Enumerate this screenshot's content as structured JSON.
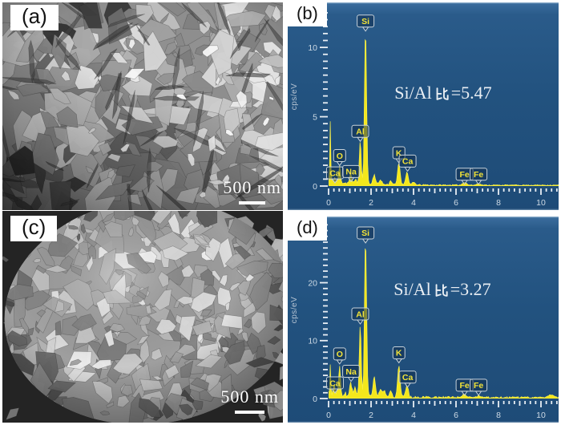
{
  "figure": {
    "caption_labels": [
      "(a)",
      "(b)",
      "(c)",
      "(d)"
    ]
  },
  "panels": {
    "a": {
      "label": "(a)",
      "scale_bar_text": "500 nm"
    },
    "b": {
      "label": "(b)"
    },
    "c": {
      "label": "(c)",
      "scale_bar_text": "500 nm"
    },
    "d": {
      "label": "(d)"
    }
  },
  "colors": {
    "panel_bg": "#21507d",
    "panel_bg_light": "#3c6e9e",
    "spectrum_fill": "#f4e71c",
    "spectrum_stroke": "#f9f04a",
    "tag_text": "#f2e338",
    "tag_border": "#c7d2da",
    "tag_fill": "rgba(13,42,74,0.5)",
    "tick": "#e8eef4",
    "tick_label": "#cddae5",
    "axis_label": "#b6c4d3",
    "annotation": "#e9eef3"
  },
  "chart_data": [
    {
      "id": "b",
      "type": "area",
      "title": "",
      "xlabel": "",
      "ylabel": "cps/eV",
      "xlim": [
        0,
        11
      ],
      "ylim": [
        0,
        12.9
      ],
      "xticks_labeled": [
        0,
        2,
        4,
        6,
        8,
        10
      ],
      "yticks_labeled": [
        0,
        5,
        10
      ],
      "x_minor_step": 0.25,
      "y_minor_step": 0.5,
      "grid": false,
      "legend": "none",
      "annotation": "Si/Al比=5.47",
      "annotation_prefix": "Si/Al",
      "annotation_ratio_char": "比",
      "annotation_suffix": "=5.47",
      "baseline": 0.16,
      "noise": 0.12,
      "peaks": [
        {
          "kev": 0.08,
          "h": 4.3,
          "w": 0.022
        },
        {
          "kev": 0.28,
          "h": 0.3,
          "w": 0.05
        },
        {
          "kev": 0.52,
          "h": 1.15,
          "w": 0.045,
          "el": "O"
        },
        {
          "kev": 1.04,
          "h": 0.6,
          "w": 0.05,
          "el": "Na"
        },
        {
          "kev": 1.25,
          "h": 0.32,
          "w": 0.05
        },
        {
          "kev": 1.49,
          "h": 3.1,
          "w": 0.045,
          "el": "Al"
        },
        {
          "kev": 1.74,
          "h": 11.2,
          "w": 0.05,
          "el": "Si"
        },
        {
          "kev": 2.15,
          "h": 0.7,
          "w": 0.06
        },
        {
          "kev": 2.45,
          "h": 0.35,
          "w": 0.06
        },
        {
          "kev": 2.93,
          "h": 0.28,
          "w": 0.06
        },
        {
          "kev": 3.31,
          "h": 1.6,
          "w": 0.06,
          "el": "K"
        },
        {
          "kev": 3.69,
          "h": 0.9,
          "w": 0.065,
          "el": "Ca"
        },
        {
          "kev": 4.01,
          "h": 0.18,
          "w": 0.07
        },
        {
          "kev": 6.4,
          "h": 0.22,
          "w": 0.09,
          "el": "Fe"
        },
        {
          "kev": 7.06,
          "h": 0.1,
          "w": 0.09,
          "el": "Fe"
        }
      ],
      "tags": [
        {
          "text": "Si",
          "kev": 1.74,
          "y": 11.9
        },
        {
          "text": "Al",
          "kev": 1.49,
          "y": 3.95
        },
        {
          "text": "O",
          "kev": 0.52,
          "y": 2.2
        },
        {
          "text": "Ca",
          "kev": 0.3,
          "y": 0.95
        },
        {
          "text": "Na",
          "kev": 1.06,
          "y": 1.05
        },
        {
          "text": "K",
          "kev": 3.31,
          "y": 2.4
        },
        {
          "text": "Ca",
          "kev": 3.72,
          "y": 1.8
        },
        {
          "text": "Fe",
          "kev": 6.4,
          "y": 0.85
        },
        {
          "text": "Fe",
          "kev": 7.06,
          "y": 0.85
        }
      ]
    },
    {
      "id": "d",
      "type": "area",
      "title": "",
      "xlabel": "",
      "ylabel": "cps/eV",
      "xlim": [
        0,
        11
      ],
      "ylim": [
        0,
        30.6
      ],
      "xticks_labeled": [
        0,
        2,
        4,
        6,
        8,
        10
      ],
      "yticks_labeled": [
        0,
        10,
        20
      ],
      "x_minor_step": 0.25,
      "y_minor_step": 1,
      "grid": false,
      "legend": "none",
      "annotation": "Si/Al比=3.27",
      "annotation_prefix": "Si/Al",
      "annotation_ratio_char": "比",
      "annotation_suffix": "=3.27",
      "baseline": 0.5,
      "noise": 0.5,
      "peaks": [
        {
          "kev": 0.08,
          "h": 4.6,
          "w": 0.022
        },
        {
          "kev": 0.28,
          "h": 1.1,
          "w": 0.05
        },
        {
          "kev": 0.52,
          "h": 4.6,
          "w": 0.045,
          "el": "O"
        },
        {
          "kev": 1.04,
          "h": 2.5,
          "w": 0.05,
          "el": "Na"
        },
        {
          "kev": 1.25,
          "h": 1.4,
          "w": 0.05
        },
        {
          "kev": 1.49,
          "h": 12.2,
          "w": 0.045,
          "el": "Al"
        },
        {
          "kev": 1.74,
          "h": 27.5,
          "w": 0.05,
          "el": "Si"
        },
        {
          "kev": 2.15,
          "h": 3.2,
          "w": 0.06
        },
        {
          "kev": 2.45,
          "h": 1.3,
          "w": 0.06
        },
        {
          "kev": 2.62,
          "h": 0.9,
          "w": 0.06
        },
        {
          "kev": 2.93,
          "h": 1.0,
          "w": 0.06
        },
        {
          "kev": 3.31,
          "h": 5.5,
          "w": 0.06,
          "el": "K"
        },
        {
          "kev": 3.69,
          "h": 1.9,
          "w": 0.065,
          "el": "Ca"
        },
        {
          "kev": 6.4,
          "h": 0.45,
          "w": 0.09,
          "el": "Fe"
        },
        {
          "kev": 7.06,
          "h": 0.25,
          "w": 0.09,
          "el": "Fe"
        },
        {
          "kev": 10.45,
          "h": 0.45,
          "w": 0.12
        }
      ],
      "tags": [
        {
          "text": "Si",
          "kev": 1.74,
          "y": 28.6
        },
        {
          "text": "Al",
          "kev": 1.49,
          "y": 14.6
        },
        {
          "text": "O",
          "kev": 0.52,
          "y": 7.7
        },
        {
          "text": "Ca",
          "kev": 0.3,
          "y": 2.7
        },
        {
          "text": "Na",
          "kev": 1.06,
          "y": 4.7
        },
        {
          "text": "K",
          "kev": 3.31,
          "y": 7.9
        },
        {
          "text": "Ca",
          "kev": 3.72,
          "y": 3.7
        },
        {
          "text": "Fe",
          "kev": 6.4,
          "y": 2.3
        },
        {
          "text": "Fe",
          "kev": 7.06,
          "y": 2.3
        }
      ]
    }
  ]
}
